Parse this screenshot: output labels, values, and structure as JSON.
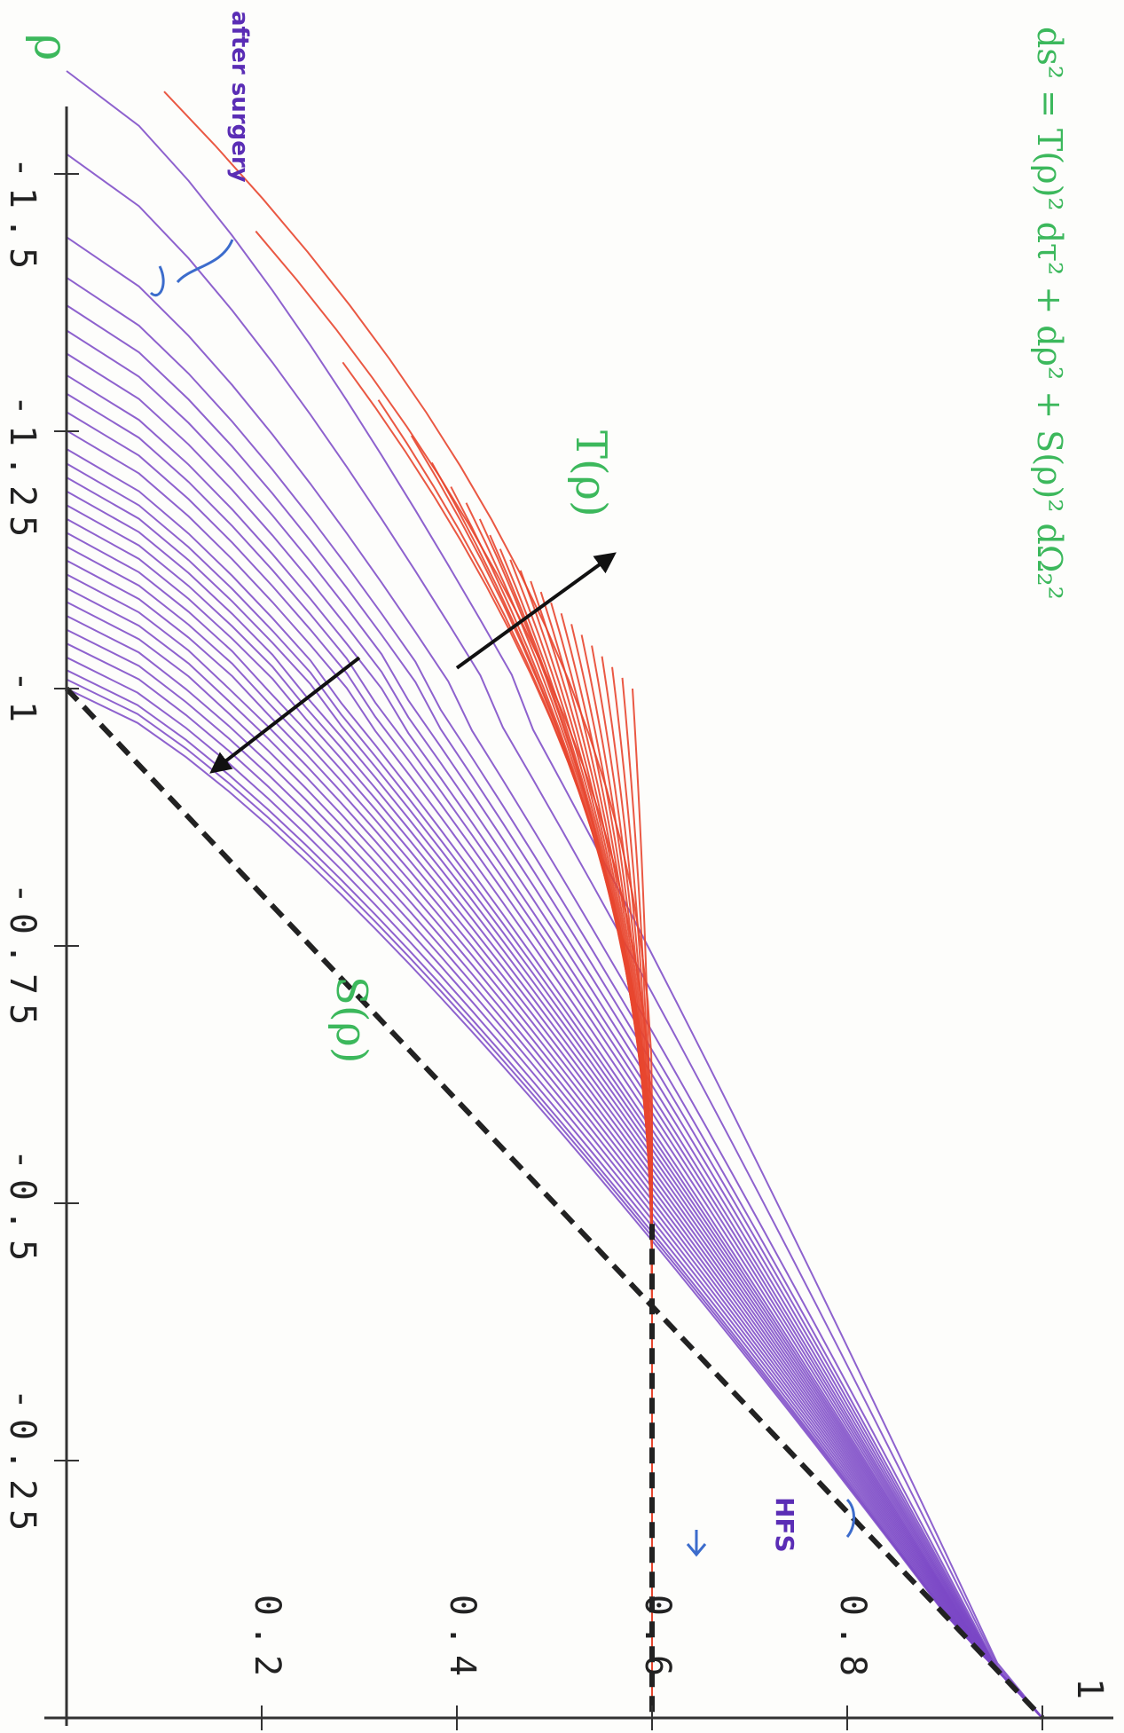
{
  "chart_data": {
    "type": "line",
    "orientation": "rotated-90-clockwise",
    "xlabel": "ρ",
    "xlim": [
      -1.6,
      0
    ],
    "ylim": [
      0,
      1
    ],
    "x_ticks": [
      "-1.5",
      "-1.25",
      "-1",
      "-0.75",
      "-0.5",
      "-0.25"
    ],
    "x_tick_values": [
      -1.5,
      -1.25,
      -1.0,
      -0.75,
      -0.5,
      -0.25
    ],
    "y_ticks": [
      "0.2",
      "0.4",
      "0.6",
      "0.8",
      "1"
    ],
    "y_tick_values": [
      0.2,
      0.4,
      0.6,
      0.8,
      1.0
    ],
    "series": [
      {
        "name": "T(ρ)",
        "color": "#e8462f",
        "family": true,
        "curve_count": 24,
        "endpoints_start": [
          [
            -1.58,
            0.1
          ],
          [
            -1.32,
            0.28
          ],
          [
            -1.25,
            0.35
          ],
          [
            -1.2,
            0.39
          ],
          [
            -1.17,
            0.42
          ],
          [
            -1.14,
            0.44
          ],
          [
            -1.12,
            0.46
          ],
          [
            -1.1,
            0.48
          ],
          [
            -1.08,
            0.5
          ],
          [
            -1.06,
            0.52
          ],
          [
            -1.04,
            0.54
          ],
          [
            -1.02,
            0.56
          ],
          [
            -1.0,
            0.58
          ]
        ],
        "limit_value": 0.6
      },
      {
        "name": "S(ρ)",
        "color": "#7a46c6",
        "family": true,
        "curve_count": 30,
        "endpoints_start": [
          [
            -1.6,
            0.0
          ],
          [
            -1.42,
            0.0
          ],
          [
            -1.36,
            0.0
          ],
          [
            -1.31,
            0.0
          ],
          [
            -1.27,
            0.0
          ],
          [
            -1.23,
            0.0
          ],
          [
            -1.2,
            0.0
          ],
          [
            -1.17,
            0.0
          ],
          [
            -1.14,
            0.0
          ],
          [
            -1.11,
            0.0
          ],
          [
            -1.08,
            0.0
          ],
          [
            -1.05,
            0.0
          ],
          [
            -1.02,
            0.0
          ],
          [
            -1.0,
            0.0
          ]
        ],
        "limit_line": [
          [
            -1.0,
            0.0
          ],
          [
            0.0,
            1.0
          ]
        ]
      }
    ],
    "reference_lines": [
      {
        "kind": "dashed",
        "color": "#222",
        "points": [
          [
            -0.48,
            0.6
          ],
          [
            0.0,
            0.6
          ]
        ]
      },
      {
        "kind": "dashed",
        "color": "#222",
        "points": [
          [
            -1.0,
            0.0
          ],
          [
            0.0,
            1.0
          ]
        ]
      }
    ],
    "arrows": [
      {
        "from": [
          -1.02,
          0.4
        ],
        "to": [
          -1.13,
          0.56
        ],
        "color": "#111"
      },
      {
        "from": [
          -1.03,
          0.3
        ],
        "to": [
          -0.92,
          0.15
        ],
        "color": "#111"
      }
    ],
    "annotations": {
      "metric": "ds² = T(ρ)² dτ² + dρ² + S(ρ)² dΩ₂²",
      "T_label": "T(ρ)",
      "S_label": "S(ρ)",
      "after_surgery": "after surgery",
      "hfs": "HFS",
      "axis_symbol": "ρ"
    }
  },
  "colors": {
    "background": "#fdfdfb",
    "axis": "#333333",
    "annotation_green": "#3cb85c",
    "annotation_purple": "#5a2db5"
  }
}
